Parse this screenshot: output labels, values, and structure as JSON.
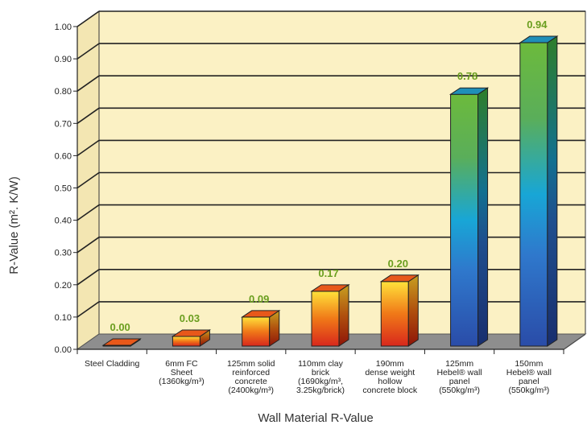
{
  "chart_data": {
    "type": "bar",
    "title": "",
    "xlabel": "Wall Material R-Value",
    "ylabel": "R-Value (m². K/W)",
    "ylim": [
      0,
      1.0
    ],
    "yticks": [
      "0.00",
      "0.10",
      "0.20",
      "0.30",
      "0.40",
      "0.50",
      "0.60",
      "0.70",
      "0.80",
      "0.90",
      "1.00"
    ],
    "grid": true,
    "categories": [
      [
        "Steel Cladding"
      ],
      [
        "6mm FC",
        "Sheet",
        "(1360kg/m³)"
      ],
      [
        "125mm solid",
        "reinforced",
        "concrete",
        "(2400kg/m³)"
      ],
      [
        "110mm clay",
        "brick",
        "(1690kg/m³,",
        "3.25kg/brick)"
      ],
      [
        "190mm",
        "dense weight",
        "hollow",
        "concrete block"
      ],
      [
        "125mm",
        "Hebel® wall",
        "panel",
        "(550kg/m³)"
      ],
      [
        "150mm",
        "Hebel® wall",
        "panel",
        "(550kg/m³)"
      ]
    ],
    "values": [
      0.0,
      0.03,
      0.09,
      0.17,
      0.2,
      0.78,
      0.94
    ],
    "value_labels": [
      "0.00",
      "0.03",
      "0.09",
      "0.17",
      "0.20",
      "0.78",
      "0.94"
    ],
    "bar_styles": [
      "warm",
      "warm",
      "warm",
      "warm",
      "warm",
      "cool",
      "cool"
    ]
  },
  "colors": {
    "plot_background": "#fbf1c4",
    "floor": "#8e8e8e",
    "data_label": "#6a9e1f"
  }
}
